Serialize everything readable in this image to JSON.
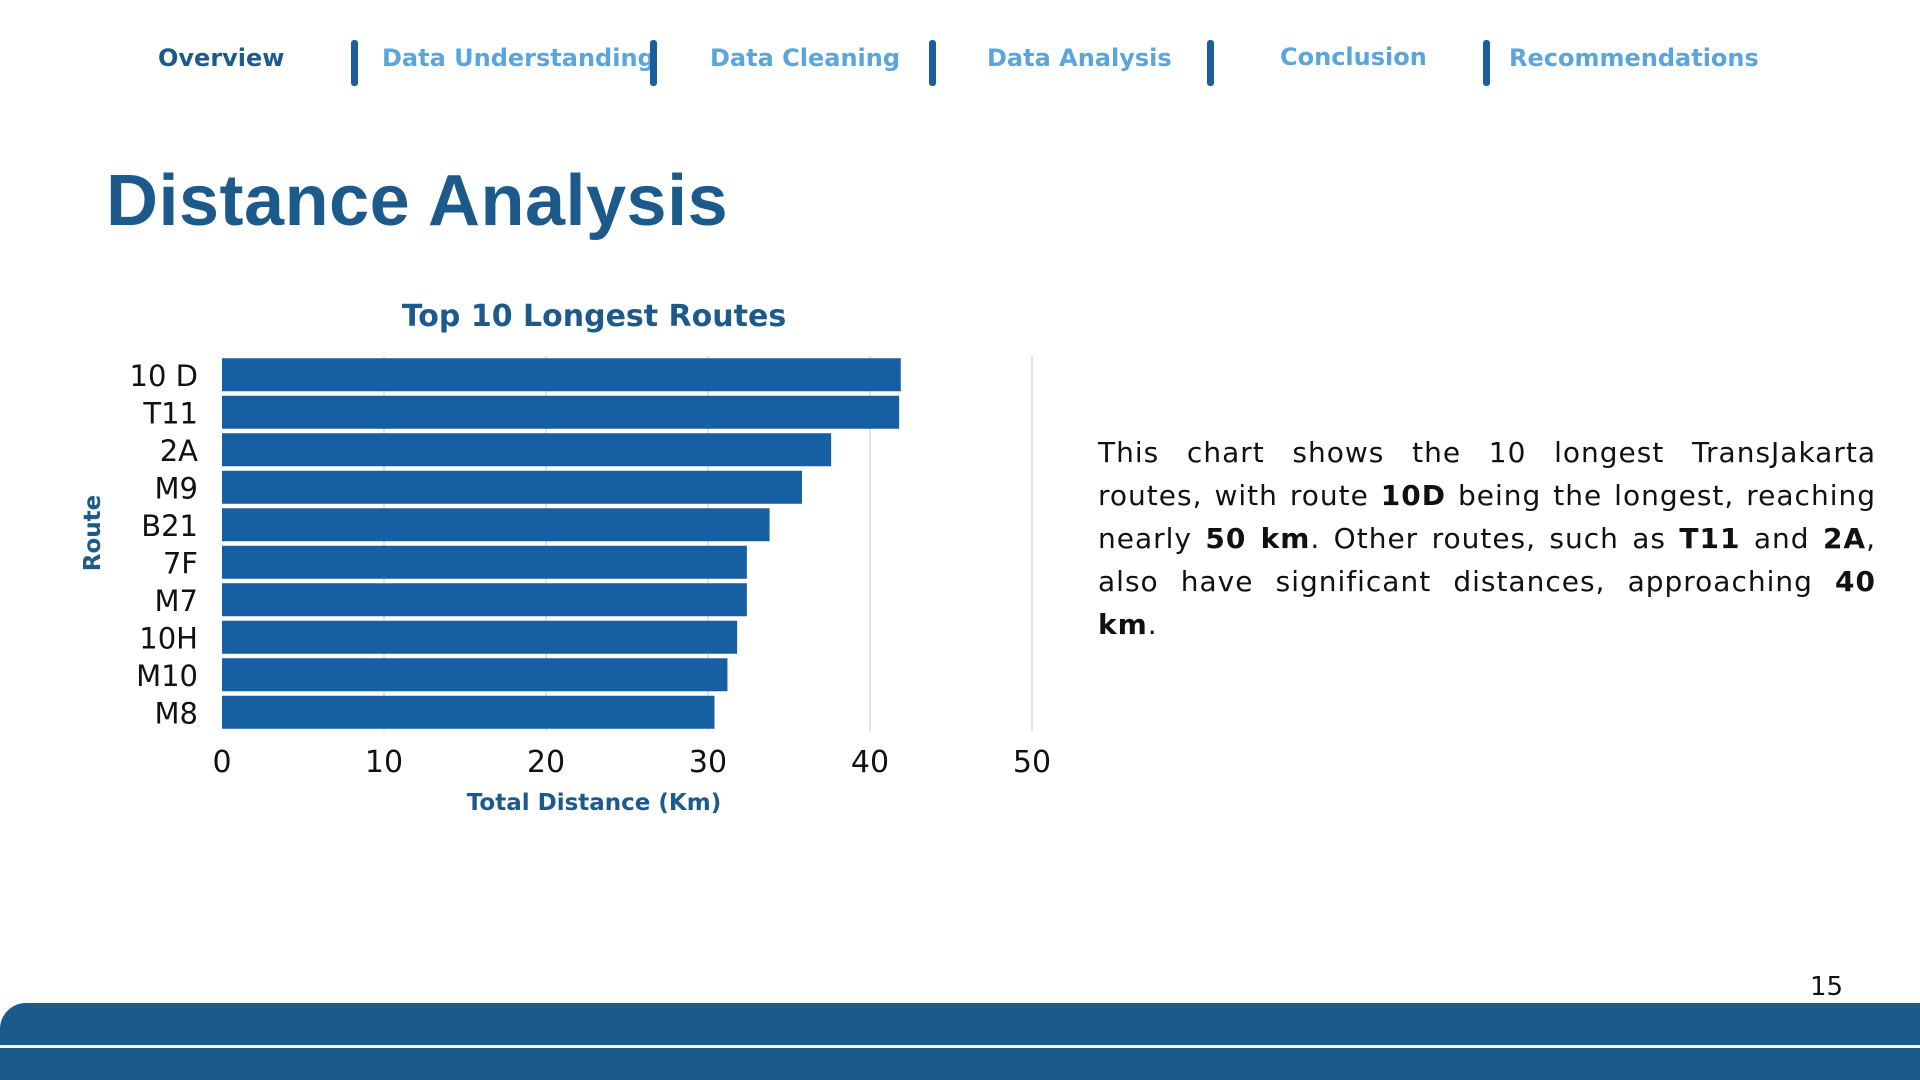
{
  "nav": {
    "items": [
      {
        "label": "Overview"
      },
      {
        "label": "Data Understanding"
      },
      {
        "label": "Data Cleaning"
      },
      {
        "label": "Data Analysis"
      },
      {
        "label": "Conclusion"
      },
      {
        "label": "Recommendations"
      }
    ],
    "active_color": "#1d5a8c",
    "inactive_color": "#5aa6dc"
  },
  "page": {
    "title": "Distance Analysis",
    "number": "15"
  },
  "description": {
    "parts": [
      {
        "text": "This chart shows the 10 longest TransJakarta routes, with route ",
        "bold": false
      },
      {
        "text": "10D",
        "bold": true
      },
      {
        "text": " being the longest, reaching nearly ",
        "bold": false
      },
      {
        "text": "50 km",
        "bold": true
      },
      {
        "text": ". Other routes, such as ",
        "bold": false
      },
      {
        "text": "T11",
        "bold": true
      },
      {
        "text": " and ",
        "bold": false
      },
      {
        "text": "2A",
        "bold": true
      },
      {
        "text": ", also have significant distances, approaching ",
        "bold": false
      },
      {
        "text": "40 km",
        "bold": true
      },
      {
        "text": ".",
        "bold": false
      }
    ]
  },
  "colors": {
    "primary": "#1d5a8c",
    "bar": "#175fa3",
    "footer": "#1d5a8c"
  },
  "chart_data": {
    "type": "bar",
    "orientation": "horizontal",
    "title": "Top 10 Longest Routes",
    "xlabel": "Total Distance (Km)",
    "ylabel": "Route",
    "categories": [
      "10 D",
      "T11",
      "2A",
      "M9",
      "B21",
      "7F",
      "M7",
      "10H",
      "M10",
      "M8"
    ],
    "values": [
      41.9,
      41.8,
      37.6,
      35.8,
      33.8,
      32.4,
      32.4,
      31.8,
      31.2,
      30.4
    ],
    "xlim": [
      0,
      50
    ],
    "xticks": [
      0,
      10,
      20,
      30,
      40,
      50
    ],
    "grid": "vertical"
  }
}
